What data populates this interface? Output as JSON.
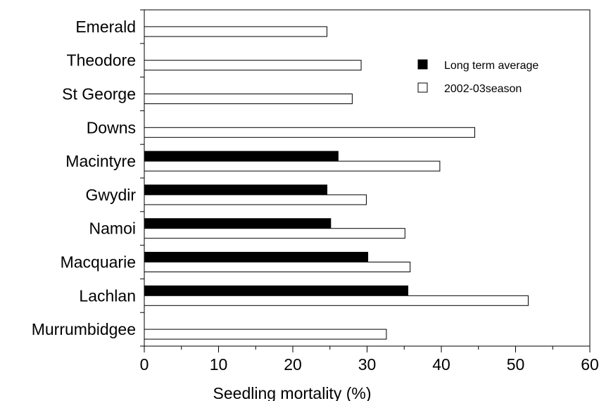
{
  "chart_data": {
    "type": "bar",
    "orientation": "horizontal",
    "categories": [
      "Emerald",
      "Theodore",
      "St George",
      "Downs",
      "Macintyre",
      "Gwydir",
      "Namoi",
      "Macquarie",
      "Lachlan",
      "Murrumbidgee"
    ],
    "series": [
      {
        "name": "Long term average",
        "color": "#000000",
        "values": [
          null,
          null,
          null,
          null,
          26.1,
          24.6,
          25.1,
          30.1,
          35.5,
          null
        ]
      },
      {
        "name": "2002-03season",
        "color": "#ffffff",
        "values": [
          24.6,
          29.2,
          28.0,
          44.5,
          39.8,
          29.9,
          35.1,
          35.8,
          51.7,
          32.6
        ]
      }
    ],
    "xlabel": "Seedling mortality (%)",
    "ylabel": "",
    "title": "",
    "xlim": [
      0,
      60
    ],
    "xticks": [
      "0",
      "10",
      "20",
      "30",
      "40",
      "50",
      "60"
    ],
    "grid": false,
    "legend_position": "top-right"
  }
}
